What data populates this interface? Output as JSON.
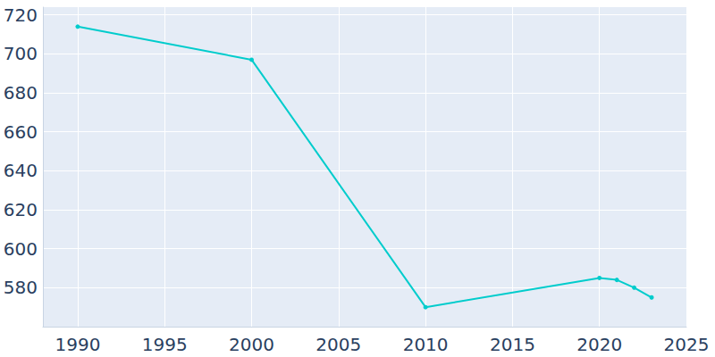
{
  "chart_data": {
    "type": "line",
    "x": [
      1990,
      2000,
      2010,
      2020,
      2021,
      2022,
      2023
    ],
    "values": [
      714,
      697,
      570,
      585,
      584,
      580,
      575
    ],
    "color": "#00cccc",
    "xlim": [
      1988,
      2025
    ],
    "xticks": [
      1990,
      1995,
      2000,
      2005,
      2010,
      2015,
      2020,
      2025
    ],
    "ylim": [
      560,
      724
    ],
    "yticks": [
      580,
      600,
      620,
      640,
      660,
      680,
      700,
      720
    ],
    "grid": true,
    "marker": "circle"
  }
}
